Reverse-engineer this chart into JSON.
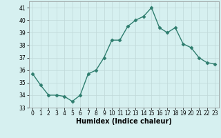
{
  "x": [
    0,
    1,
    2,
    3,
    4,
    5,
    6,
    7,
    8,
    9,
    10,
    11,
    12,
    13,
    14,
    15,
    16,
    17,
    18,
    19,
    20,
    21,
    22,
    23
  ],
  "y": [
    35.7,
    34.8,
    34.0,
    34.0,
    33.9,
    33.5,
    34.0,
    35.7,
    36.0,
    37.0,
    38.4,
    38.4,
    39.5,
    40.0,
    40.3,
    41.0,
    39.4,
    39.0,
    39.4,
    38.1,
    37.8,
    37.0,
    36.6,
    36.5
  ],
  "line_color": "#2e7d6e",
  "marker": "D",
  "marker_size": 2.5,
  "bg_color": "#d6f0f0",
  "grid_color": "#c0d8d8",
  "xlabel": "Humidex (Indice chaleur)",
  "xlim": [
    -0.5,
    23.5
  ],
  "ylim": [
    33,
    41.5
  ],
  "yticks": [
    33,
    34,
    35,
    36,
    37,
    38,
    39,
    40,
    41
  ],
  "xticks": [
    0,
    1,
    2,
    3,
    4,
    5,
    6,
    7,
    8,
    9,
    10,
    11,
    12,
    13,
    14,
    15,
    16,
    17,
    18,
    19,
    20,
    21,
    22,
    23
  ],
  "tick_fontsize": 5.5,
  "xlabel_fontsize": 7,
  "linewidth": 1.0
}
